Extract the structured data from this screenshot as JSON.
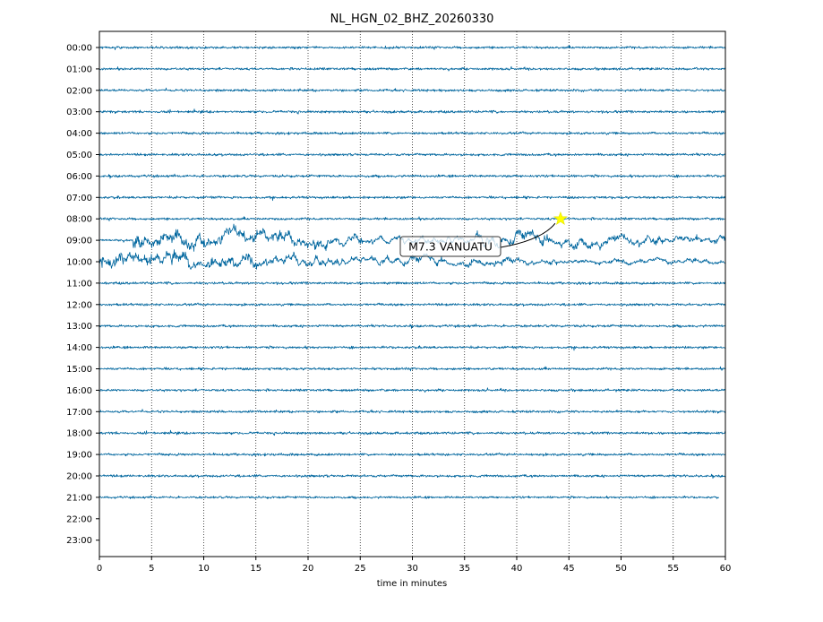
{
  "chart_data": {
    "type": "line",
    "title": "NL_HGN_02_BHZ_20260330",
    "xlabel": "time in minutes",
    "ylabel": "",
    "xlim": [
      0,
      60
    ],
    "x_ticks": [
      0,
      5,
      10,
      15,
      20,
      25,
      30,
      35,
      40,
      45,
      50,
      55,
      60
    ],
    "x_tick_labels": [
      "0",
      "5",
      "10",
      "15",
      "20",
      "25",
      "30",
      "35",
      "40",
      "45",
      "50",
      "55",
      "60"
    ],
    "grid": "vertical dotted",
    "hour_rows": [
      "00:00",
      "01:00",
      "02:00",
      "03:00",
      "04:00",
      "05:00",
      "06:00",
      "07:00",
      "08:00",
      "09:00",
      "10:00",
      "11:00",
      "12:00",
      "13:00",
      "14:00",
      "15:00",
      "16:00",
      "17:00",
      "18:00",
      "19:00",
      "20:00",
      "21:00",
      "22:00",
      "23:00"
    ],
    "trace_color": "#00669e",
    "traces": [
      {
        "hour": "00:00",
        "start_min": 0,
        "end_min": 60,
        "amplitude": 1.0,
        "quake": []
      },
      {
        "hour": "01:00",
        "start_min": 0,
        "end_min": 60,
        "amplitude": 1.0,
        "quake": []
      },
      {
        "hour": "02:00",
        "start_min": 0,
        "end_min": 60,
        "amplitude": 1.0,
        "quake": []
      },
      {
        "hour": "03:00",
        "start_min": 0,
        "end_min": 60,
        "amplitude": 1.0,
        "quake": []
      },
      {
        "hour": "04:00",
        "start_min": 0,
        "end_min": 60,
        "amplitude": 1.0,
        "quake": []
      },
      {
        "hour": "05:00",
        "start_min": 0,
        "end_min": 60,
        "amplitude": 1.0,
        "quake": []
      },
      {
        "hour": "06:00",
        "start_min": 0,
        "end_min": 60,
        "amplitude": 1.0,
        "quake": []
      },
      {
        "hour": "07:00",
        "start_min": 0,
        "end_min": 60,
        "amplitude": 1.0,
        "quake": []
      },
      {
        "hour": "08:00",
        "start_min": 0,
        "end_min": 60,
        "amplitude": 1.0,
        "quake": []
      },
      {
        "hour": "09:00",
        "start_min": 0,
        "end_min": 60,
        "amplitude": 1.0,
        "quake": [
          {
            "start": 3.2,
            "end": 22,
            "amp": 3.5
          },
          {
            "start": 22,
            "end": 36,
            "amp": 1.8
          },
          {
            "start": 36,
            "end": 60,
            "amp": 2.4
          }
        ]
      },
      {
        "hour": "10:00",
        "start_min": 0,
        "end_min": 60,
        "amplitude": 1.0,
        "quake": [
          {
            "start": 0,
            "end": 20,
            "amp": 3.2
          },
          {
            "start": 20,
            "end": 36,
            "amp": 2.0
          },
          {
            "start": 36,
            "end": 60,
            "amp": 1.4
          }
        ]
      },
      {
        "hour": "11:00",
        "start_min": 0,
        "end_min": 60,
        "amplitude": 1.0,
        "quake": []
      },
      {
        "hour": "12:00",
        "start_min": 0,
        "end_min": 60,
        "amplitude": 1.0,
        "quake": []
      },
      {
        "hour": "13:00",
        "start_min": 0,
        "end_min": 60,
        "amplitude": 1.0,
        "quake": []
      },
      {
        "hour": "14:00",
        "start_min": 0,
        "end_min": 60,
        "amplitude": 1.0,
        "quake": []
      },
      {
        "hour": "15:00",
        "start_min": 0,
        "end_min": 60,
        "amplitude": 1.0,
        "quake": []
      },
      {
        "hour": "16:00",
        "start_min": 0,
        "end_min": 60,
        "amplitude": 1.0,
        "quake": []
      },
      {
        "hour": "17:00",
        "start_min": 0,
        "end_min": 60,
        "amplitude": 1.0,
        "quake": []
      },
      {
        "hour": "18:00",
        "start_min": 0,
        "end_min": 60,
        "amplitude": 1.0,
        "quake": []
      },
      {
        "hour": "19:00",
        "start_min": 0,
        "end_min": 60,
        "amplitude": 1.0,
        "quake": []
      },
      {
        "hour": "20:00",
        "start_min": 0,
        "end_min": 60,
        "amplitude": 1.0,
        "quake": []
      },
      {
        "hour": "21:00",
        "start_min": 0,
        "end_min": 59.4,
        "amplitude": 0.9,
        "quake": []
      }
    ],
    "event": {
      "label": "M7.3 VANUATU",
      "hour": "08:00",
      "minute": 44.2,
      "marker": "star",
      "marker_color": "#ffff00"
    }
  }
}
